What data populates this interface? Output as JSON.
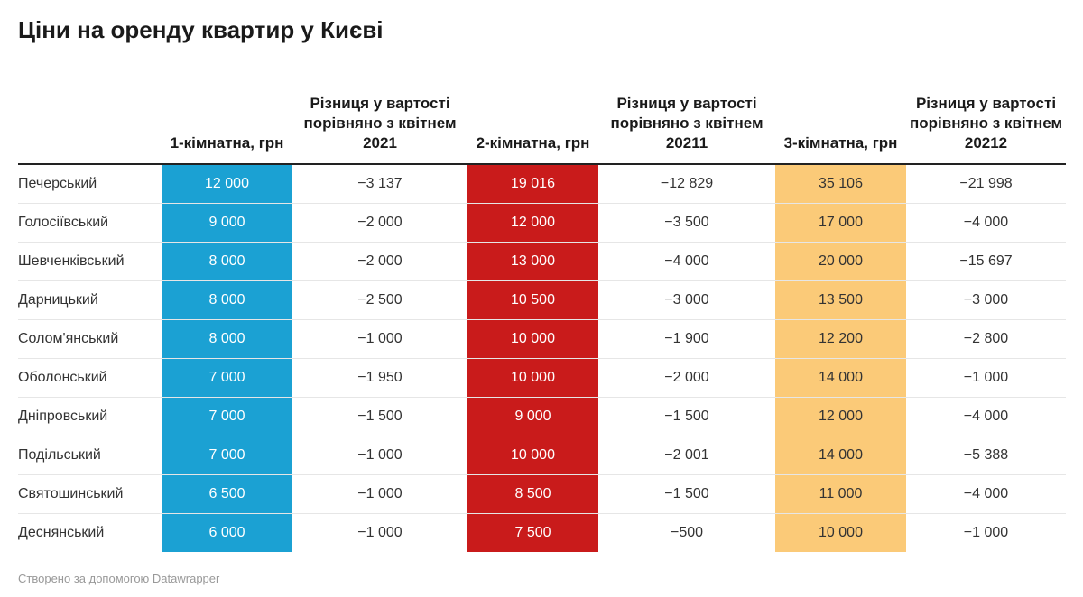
{
  "title": "Ціни на оренду квартир у Києві",
  "footer": "Створено за допомогою Datawrapper",
  "colors": {
    "one_room": "#1ba1d3",
    "two_room": "#c91b1b",
    "three_room": "#fbca78"
  },
  "chart_data": {
    "type": "table",
    "title": "Ціни на оренду квартир у Києві",
    "columns": [
      "",
      "1-кімнатна, грн",
      "Різниця у вартості порівняно з квітнем 2021",
      "2-кімнатна, грн",
      "Різниця у вартості порівняно з квітнем 20211",
      "3-кімнатна, грн",
      "Різниця у вартості порівняно з квітнем 20212"
    ],
    "rows": [
      [
        "Печерський",
        "12 000",
        "−3 137",
        "19 016",
        "−12 829",
        "35 106",
        "−21 998"
      ],
      [
        "Голосіївський",
        "9 000",
        "−2 000",
        "12 000",
        "−3 500",
        "17 000",
        "−4 000"
      ],
      [
        "Шевченківський",
        "8 000",
        "−2 000",
        "13 000",
        "−4 000",
        "20 000",
        "−15 697"
      ],
      [
        "Дарницький",
        "8 000",
        "−2 500",
        "10 500",
        "−3 000",
        "13 500",
        "−3 000"
      ],
      [
        "Солом'янський",
        "8 000",
        "−1 000",
        "10 000",
        "−1 900",
        "12 200",
        "−2 800"
      ],
      [
        "Оболонський",
        "7 000",
        "−1 950",
        "10 000",
        "−2 000",
        "14 000",
        "−1 000"
      ],
      [
        "Дніпровський",
        "7 000",
        "−1 500",
        "9 000",
        "−1 500",
        "12 000",
        "−4 000"
      ],
      [
        "Подільський",
        "7 000",
        "−1 000",
        "10 000",
        "−2 001",
        "14 000",
        "−5 388"
      ],
      [
        "Святошинський",
        "6 500",
        "−1 000",
        "8 500",
        "−1 500",
        "11 000",
        "−4 000"
      ],
      [
        "Деснянський",
        "6 000",
        "−1 000",
        "7 500",
        "−500",
        "10 000",
        "−1 000"
      ]
    ]
  }
}
